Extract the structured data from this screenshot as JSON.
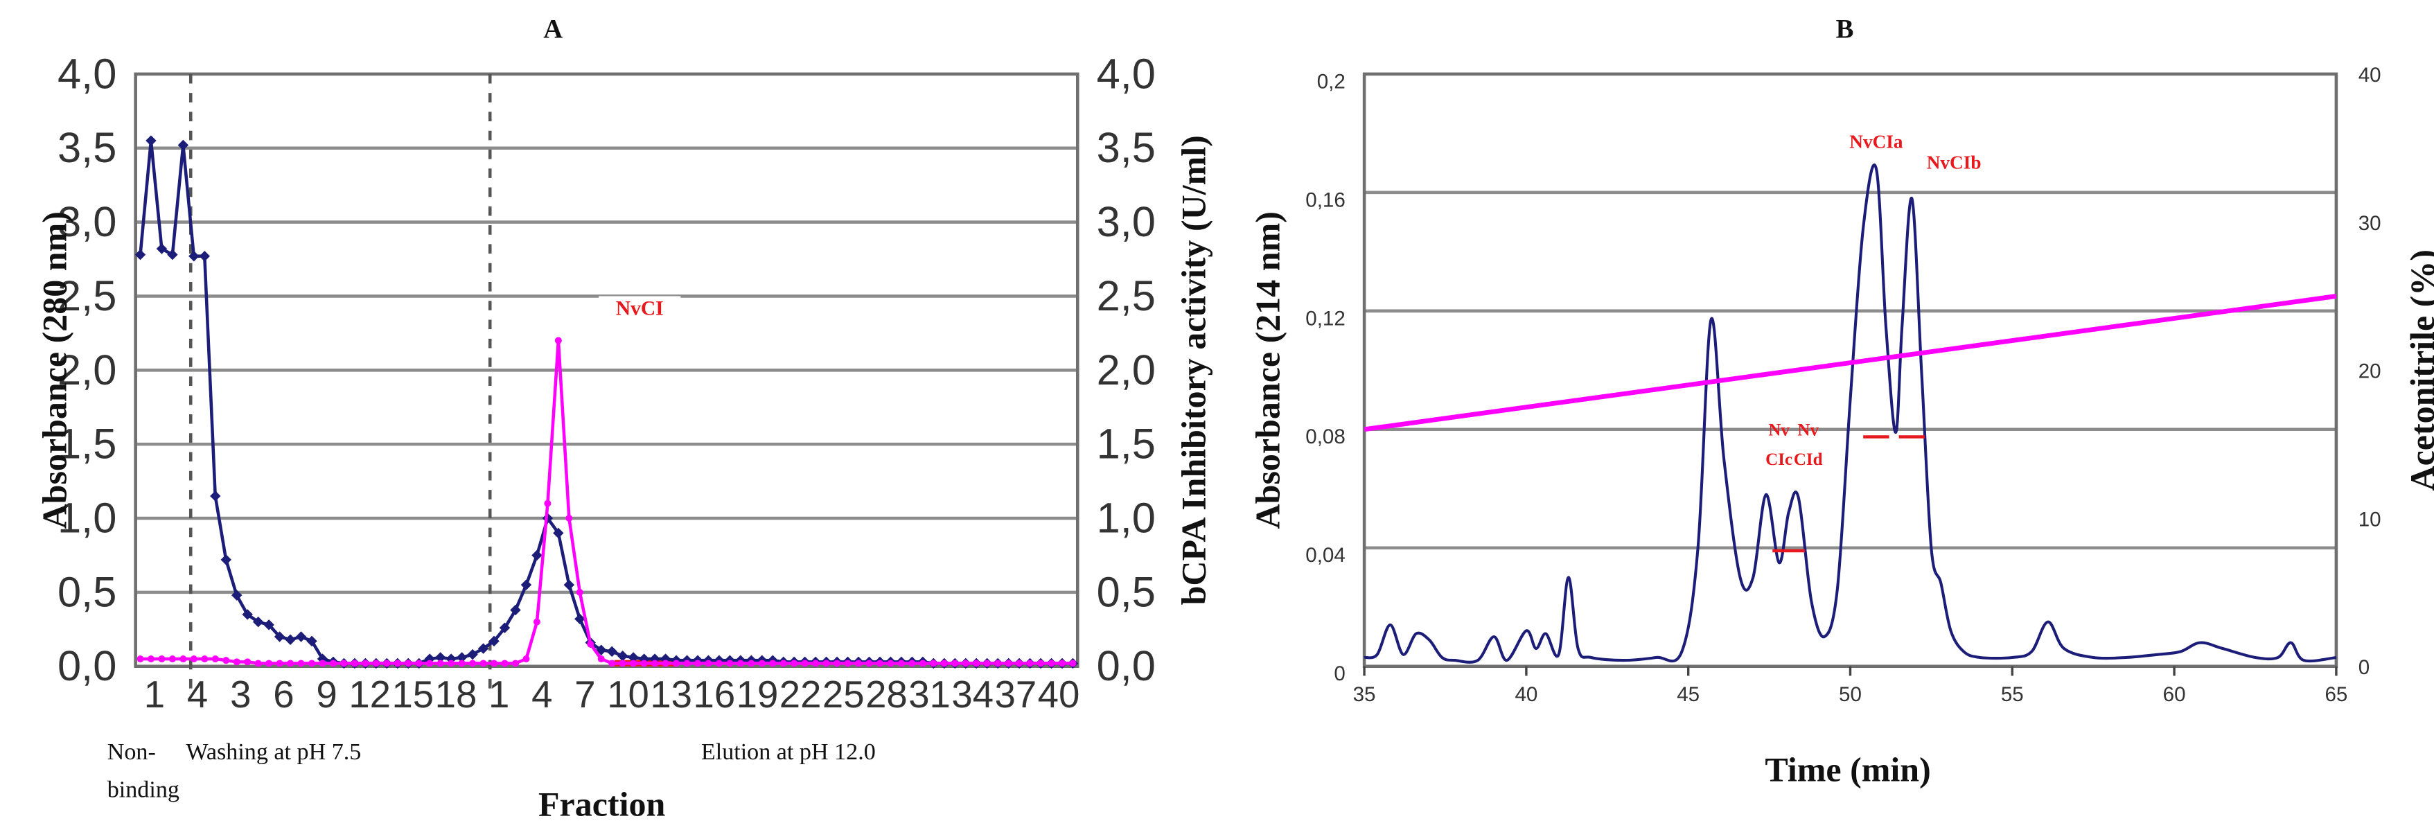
{
  "colors": {
    "absorbance": "#1c1d78",
    "activity": "#ff00ff",
    "label_red": "#e8191e",
    "grid": "#8c8c8c"
  },
  "chart_data": [
    {
      "type": "line",
      "panel": "A",
      "title": "A",
      "xlabel": "Fraction",
      "ylabel_left": "Absorbance (280 nm)",
      "ylabel_right": "bCPA Inhibitory activity (U/ml)",
      "ylim": [
        0,
        4
      ],
      "y_ticks": [
        "0,0",
        "0,5",
        "1,0",
        "1,5",
        "2,0",
        "2,5",
        "3,0",
        "3,5",
        "4,0"
      ],
      "y2_ticks": [
        "0,0",
        "0,5",
        "1,0",
        "1,5",
        "2,0",
        "2,5",
        "3,0",
        "3,5",
        "4,0"
      ],
      "x_tick_labels": [
        "1",
        "4",
        "3",
        "6",
        "9",
        "12",
        "15",
        "18",
        "1",
        "4",
        "7",
        "10",
        "13",
        "16",
        "19",
        "22",
        "25",
        "28",
        "31",
        "34",
        "37",
        "40"
      ],
      "grid": "horizontal",
      "series": [
        {
          "name": "",
          "axis": "left",
          "color": "#1c1d78",
          "x": [
            0,
            1,
            2,
            3,
            4,
            5,
            6,
            7,
            8,
            9,
            10,
            11,
            12,
            13,
            14,
            15,
            16,
            17,
            18,
            19,
            20,
            21,
            22,
            23,
            24,
            25,
            26,
            27,
            28,
            29,
            30,
            31,
            32,
            33,
            34,
            35,
            36,
            37,
            38,
            39,
            40,
            41,
            42,
            43,
            44,
            45,
            46,
            47,
            48,
            49,
            50,
            51,
            52,
            53,
            54,
            55,
            56,
            57,
            58,
            59,
            60,
            61,
            62,
            63,
            64,
            65,
            66,
            67,
            68,
            69,
            70,
            71,
            72,
            73,
            74,
            75,
            76,
            77,
            78,
            79,
            80,
            81,
            82,
            83,
            84,
            85,
            86,
            87
          ],
          "values": [
            2.78,
            3.55,
            2.82,
            2.78,
            3.52,
            2.77,
            2.77,
            1.15,
            0.72,
            0.48,
            0.35,
            0.3,
            0.28,
            0.2,
            0.18,
            0.2,
            0.17,
            0.05,
            0.03,
            0.02,
            0.02,
            0.02,
            0.02,
            0.02,
            0.02,
            0.02,
            0.02,
            0.05,
            0.06,
            0.05,
            0.06,
            0.08,
            0.12,
            0.17,
            0.26,
            0.38,
            0.55,
            0.75,
            1.0,
            0.9,
            0.55,
            0.32,
            0.16,
            0.11,
            0.1,
            0.07,
            0.06,
            0.05,
            0.05,
            0.05,
            0.04,
            0.04,
            0.04,
            0.04,
            0.04,
            0.04,
            0.04,
            0.04,
            0.04,
            0.04,
            0.03,
            0.03,
            0.03,
            0.03,
            0.03,
            0.03,
            0.03,
            0.03,
            0.03,
            0.03,
            0.03,
            0.03,
            0.03,
            0.03,
            0.02,
            0.02,
            0.02,
            0.02,
            0.02,
            0.02,
            0.02,
            0.02,
            0.02,
            0.02,
            0.02,
            0.02,
            0.02,
            0.02
          ]
        },
        {
          "name": "",
          "axis": "right",
          "color": "#ff00ff",
          "x": [
            0,
            1,
            2,
            3,
            4,
            5,
            6,
            7,
            8,
            9,
            10,
            11,
            12,
            13,
            14,
            15,
            16,
            17,
            18,
            19,
            20,
            21,
            22,
            23,
            24,
            25,
            26,
            27,
            28,
            29,
            30,
            31,
            32,
            33,
            34,
            35,
            36,
            37,
            38,
            39,
            40,
            41,
            42,
            43,
            44,
            45,
            46,
            47,
            48,
            49,
            50,
            51,
            52,
            53,
            54,
            55,
            56,
            57,
            58,
            59,
            60,
            61,
            62,
            63,
            64,
            65,
            66,
            67,
            68,
            69,
            70,
            71,
            72,
            73,
            74,
            75,
            76,
            77,
            78,
            79,
            80,
            81,
            82,
            83,
            84,
            85,
            86,
            87
          ],
          "values": [
            0.05,
            0.05,
            0.05,
            0.05,
            0.05,
            0.05,
            0.05,
            0.05,
            0.04,
            0.03,
            0.03,
            0.02,
            0.02,
            0.02,
            0.02,
            0.02,
            0.02,
            0.02,
            0.02,
            0.02,
            0.02,
            0.02,
            0.02,
            0.02,
            0.02,
            0.02,
            0.02,
            0.02,
            0.02,
            0.02,
            0.02,
            0.02,
            0.02,
            0.02,
            0.02,
            0.02,
            0.05,
            0.3,
            1.1,
            2.2,
            1.0,
            0.5,
            0.15,
            0.05,
            0.02,
            0.02,
            0.02,
            0.02,
            0.02,
            0.02,
            0.02,
            0.02,
            0.02,
            0.02,
            0.02,
            0.02,
            0.02,
            0.02,
            0.02,
            0.02,
            0.02,
            0.02,
            0.02,
            0.02,
            0.02,
            0.02,
            0.02,
            0.02,
            0.02,
            0.02,
            0.02,
            0.02,
            0.02,
            0.02,
            0.02,
            0.02,
            0.02,
            0.02,
            0.02,
            0.02,
            0.02,
            0.02,
            0.02,
            0.02,
            0.02,
            0.02,
            0.02,
            0.02
          ]
        }
      ],
      "annotations": {
        "peak_label": "NvCI",
        "region_1": "Non-",
        "region_1b": "binding",
        "region_2": "Washing at pH 7.5",
        "region_3": "Elution at pH 12.0"
      }
    },
    {
      "type": "line",
      "panel": "B",
      "title": "B",
      "xlabel": "Time (min)",
      "ylabel_left": "Absorbance (214 nm)",
      "ylabel_right": "Acetonitrile (%)",
      "xlim": [
        35,
        65
      ],
      "ylim": [
        0,
        0.2
      ],
      "y2lim": [
        0,
        40
      ],
      "x_ticks": [
        "35",
        "40",
        "45",
        "50",
        "55",
        "60",
        "65"
      ],
      "y_ticks": [
        "0",
        "0,04",
        "0,08",
        "0,12",
        "0,16",
        "0,2"
      ],
      "y2_ticks": [
        "0",
        "10",
        "20",
        "30",
        "40"
      ],
      "grid": "horizontal",
      "series": [
        {
          "name": "",
          "axis": "left",
          "color": "#1c1d78",
          "x": [
            35,
            35.4,
            35.8,
            36.2,
            36.6,
            37,
            37.4,
            37.8,
            38.5,
            39,
            39.4,
            40,
            40.3,
            40.6,
            41,
            41.3,
            41.6,
            42,
            43,
            44,
            44.8,
            45.3,
            45.7,
            46.1,
            46.6,
            47,
            47.4,
            47.8,
            48.1,
            48.4,
            48.8,
            49.2,
            49.6,
            50,
            50.4,
            50.8,
            51.1,
            51.4,
            51.6,
            51.9,
            52.2,
            52.5,
            52.8,
            53.1,
            53.5,
            54,
            55,
            55.6,
            56.1,
            56.6,
            57.5,
            58.5,
            59.5,
            60.2,
            60.8,
            61.5,
            62.5,
            63.2,
            63.6,
            64,
            65
          ],
          "values": [
            0.003,
            0.004,
            0.014,
            0.004,
            0.011,
            0.009,
            0.003,
            0.002,
            0.002,
            0.01,
            0.002,
            0.012,
            0.006,
            0.011,
            0.004,
            0.03,
            0.006,
            0.003,
            0.002,
            0.003,
            0.005,
            0.04,
            0.117,
            0.07,
            0.03,
            0.03,
            0.058,
            0.035,
            0.052,
            0.057,
            0.022,
            0.01,
            0.026,
            0.09,
            0.148,
            0.168,
            0.115,
            0.079,
            0.115,
            0.158,
            0.1,
            0.04,
            0.028,
            0.012,
            0.005,
            0.003,
            0.003,
            0.005,
            0.015,
            0.006,
            0.003,
            0.003,
            0.004,
            0.005,
            0.008,
            0.006,
            0.003,
            0.003,
            0.008,
            0.002,
            0.003
          ]
        },
        {
          "name": "",
          "axis": "right",
          "color": "#ff00ff",
          "x": [
            35,
            65
          ],
          "values": [
            16,
            25
          ]
        }
      ],
      "peak_labels": [
        {
          "text": "NvCIa"
        },
        {
          "text": "NvCIb"
        },
        {
          "text": "Nv"
        },
        {
          "text": "CIc"
        },
        {
          "text": "Nv"
        },
        {
          "text": "CId"
        }
      ]
    }
  ]
}
